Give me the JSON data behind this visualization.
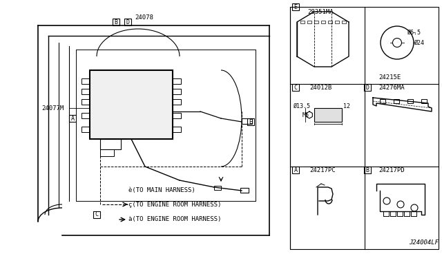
{
  "title": "",
  "bg_color": "#ffffff",
  "border_color": "#000000",
  "text_color": "#000000",
  "fig_width": 6.4,
  "fig_height": 3.72,
  "dpi": 100,
  "labels": {
    "A_label": "A",
    "B_label": "B",
    "C_label": "C",
    "D_label": "D",
    "E_label": "E",
    "part_24077M": "24077M",
    "part_24078": "24078",
    "part_24217PC": "24217PC",
    "part_24217PD": "24217PD",
    "part_24012B": "24012B",
    "part_24276MA": "24276MA",
    "part_28351MA": "28351MA",
    "part_24215E": "24215E",
    "connector_a": "à(TO ENGINE ROOM HARNESS)",
    "connector_b": "ç(TO ENGINE ROOM HARNESS)",
    "connector_c": "è(TO MAIN HARNESS)",
    "m6": "M6",
    "phi13": "Ø13.5",
    "dim12": "12",
    "phi24": "Ø24",
    "phi65": "Ø6.5",
    "footer": "J24004LF"
  }
}
